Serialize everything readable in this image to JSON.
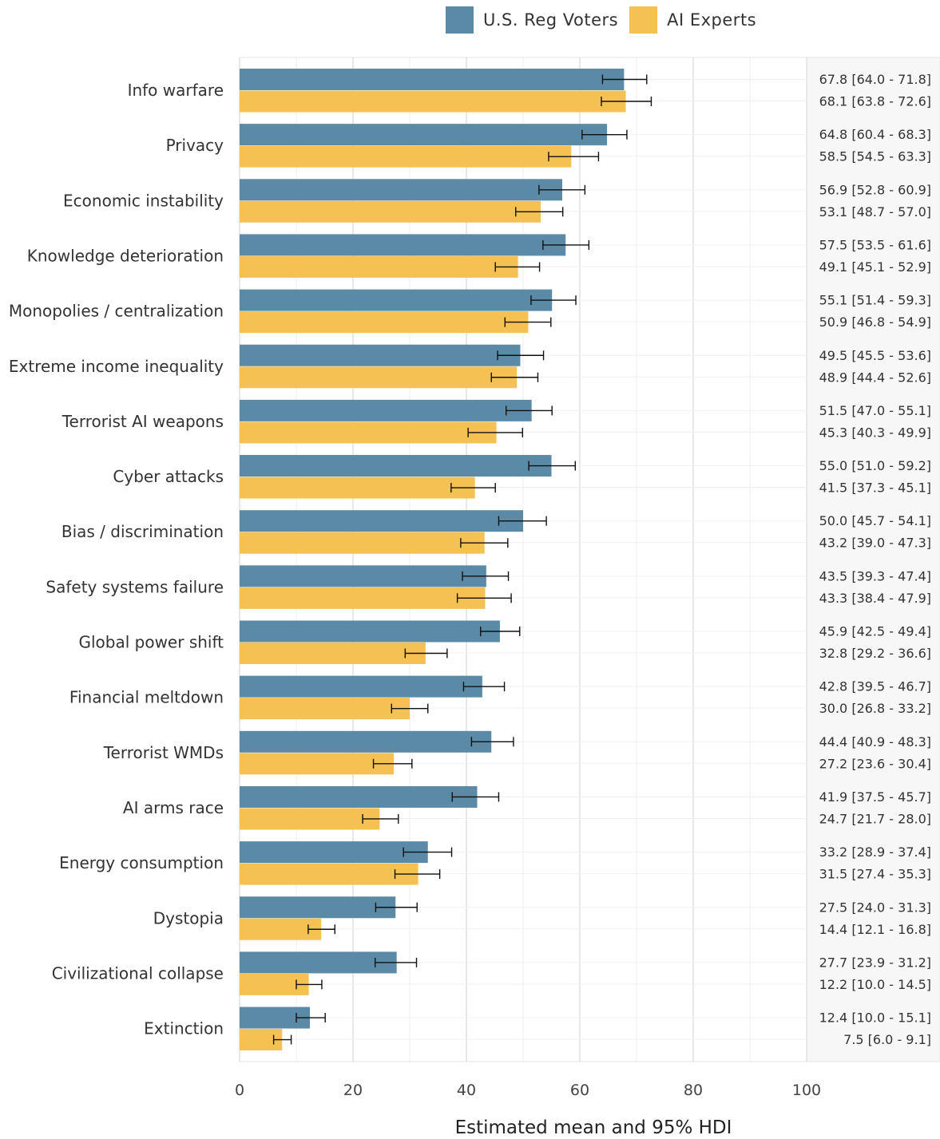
{
  "chart_data": {
    "type": "bar",
    "orientation": "horizontal",
    "xlabel": "Estimated mean and 95% HDI",
    "xlim": [
      0,
      100
    ],
    "xticks": [
      0,
      20,
      40,
      60,
      80,
      100
    ],
    "grid": true,
    "legend_position": "top",
    "categories": [
      "Info warfare",
      "Privacy",
      "Economic instability",
      "Knowledge deterioration",
      "Monopolies / centralization",
      "Extreme income inequality",
      "Terrorist AI weapons",
      "Cyber attacks",
      "Bias / discrimination",
      "Safety systems failure",
      "Global power shift",
      "Financial meltdown",
      "Terrorist WMDs",
      "AI arms race",
      "Energy consumption",
      "Dystopia",
      "Civilizational collapse",
      "Extinction"
    ],
    "series": [
      {
        "name": "U.S. Reg Voters",
        "color": "#5a8aa6",
        "values": [
          67.8,
          64.8,
          56.9,
          57.5,
          55.1,
          49.5,
          51.5,
          55.0,
          50.0,
          43.5,
          45.9,
          42.8,
          44.4,
          41.9,
          33.2,
          27.5,
          27.7,
          12.4
        ],
        "lower": [
          64.0,
          60.4,
          52.8,
          53.5,
          51.4,
          45.5,
          47.0,
          51.0,
          45.7,
          39.3,
          42.5,
          39.5,
          40.9,
          37.5,
          28.9,
          24.0,
          23.9,
          10.0
        ],
        "upper": [
          71.8,
          68.3,
          60.9,
          61.6,
          59.3,
          53.6,
          55.1,
          59.2,
          54.1,
          47.4,
          49.4,
          46.7,
          48.3,
          45.7,
          37.4,
          31.3,
          31.2,
          15.1
        ],
        "labels": [
          "67.8 [64.0 - 71.8]",
          "64.8 [60.4 - 68.3]",
          "56.9 [52.8 - 60.9]",
          "57.5 [53.5 - 61.6]",
          "55.1 [51.4 - 59.3]",
          "49.5 [45.5 - 53.6]",
          "51.5 [47.0 - 55.1]",
          "55.0 [51.0 - 59.2]",
          "50.0 [45.7 - 54.1]",
          "43.5 [39.3 - 47.4]",
          "45.9 [42.5 - 49.4]",
          "42.8 [39.5 - 46.7]",
          "44.4 [40.9 - 48.3]",
          "41.9 [37.5 - 45.7]",
          "33.2 [28.9 - 37.4]",
          "27.5 [24.0 - 31.3]",
          "27.7 [23.9 - 31.2]",
          "12.4 [10.0 - 15.1]"
        ]
      },
      {
        "name": "AI Experts",
        "color": "#f5c153",
        "values": [
          68.1,
          58.5,
          53.1,
          49.1,
          50.9,
          48.9,
          45.3,
          41.5,
          43.2,
          43.3,
          32.8,
          30.0,
          27.2,
          24.7,
          31.5,
          14.4,
          12.2,
          7.5
        ],
        "lower": [
          63.8,
          54.5,
          48.7,
          45.1,
          46.8,
          44.4,
          40.3,
          37.3,
          39.0,
          38.4,
          29.2,
          26.8,
          23.6,
          21.7,
          27.4,
          12.1,
          10.0,
          6.0
        ],
        "upper": [
          72.6,
          63.3,
          57.0,
          52.9,
          54.9,
          52.6,
          49.9,
          45.1,
          47.3,
          47.9,
          36.6,
          33.2,
          30.4,
          28.0,
          35.3,
          16.8,
          14.5,
          9.1
        ],
        "labels": [
          "68.1 [63.8 - 72.6]",
          "58.5 [54.5 - 63.3]",
          "53.1 [48.7 - 57.0]",
          "49.1 [45.1 - 52.9]",
          "50.9 [46.8 - 54.9]",
          "48.9 [44.4 - 52.6]",
          "45.3 [40.3 - 49.9]",
          "41.5 [37.3 - 45.1]",
          "43.2 [39.0 - 47.3]",
          "43.3 [38.4 - 47.9]",
          "32.8 [29.2 - 36.6]",
          "30.0 [26.8 - 33.2]",
          "27.2 [23.6 - 30.4]",
          "24.7 [21.7 - 28.0]",
          "31.5 [27.4 - 35.3]",
          "14.4 [12.1 - 16.8]",
          "12.2 [10.0 - 14.5]",
          "7.5 [6.0 - 9.1]"
        ]
      }
    ]
  }
}
